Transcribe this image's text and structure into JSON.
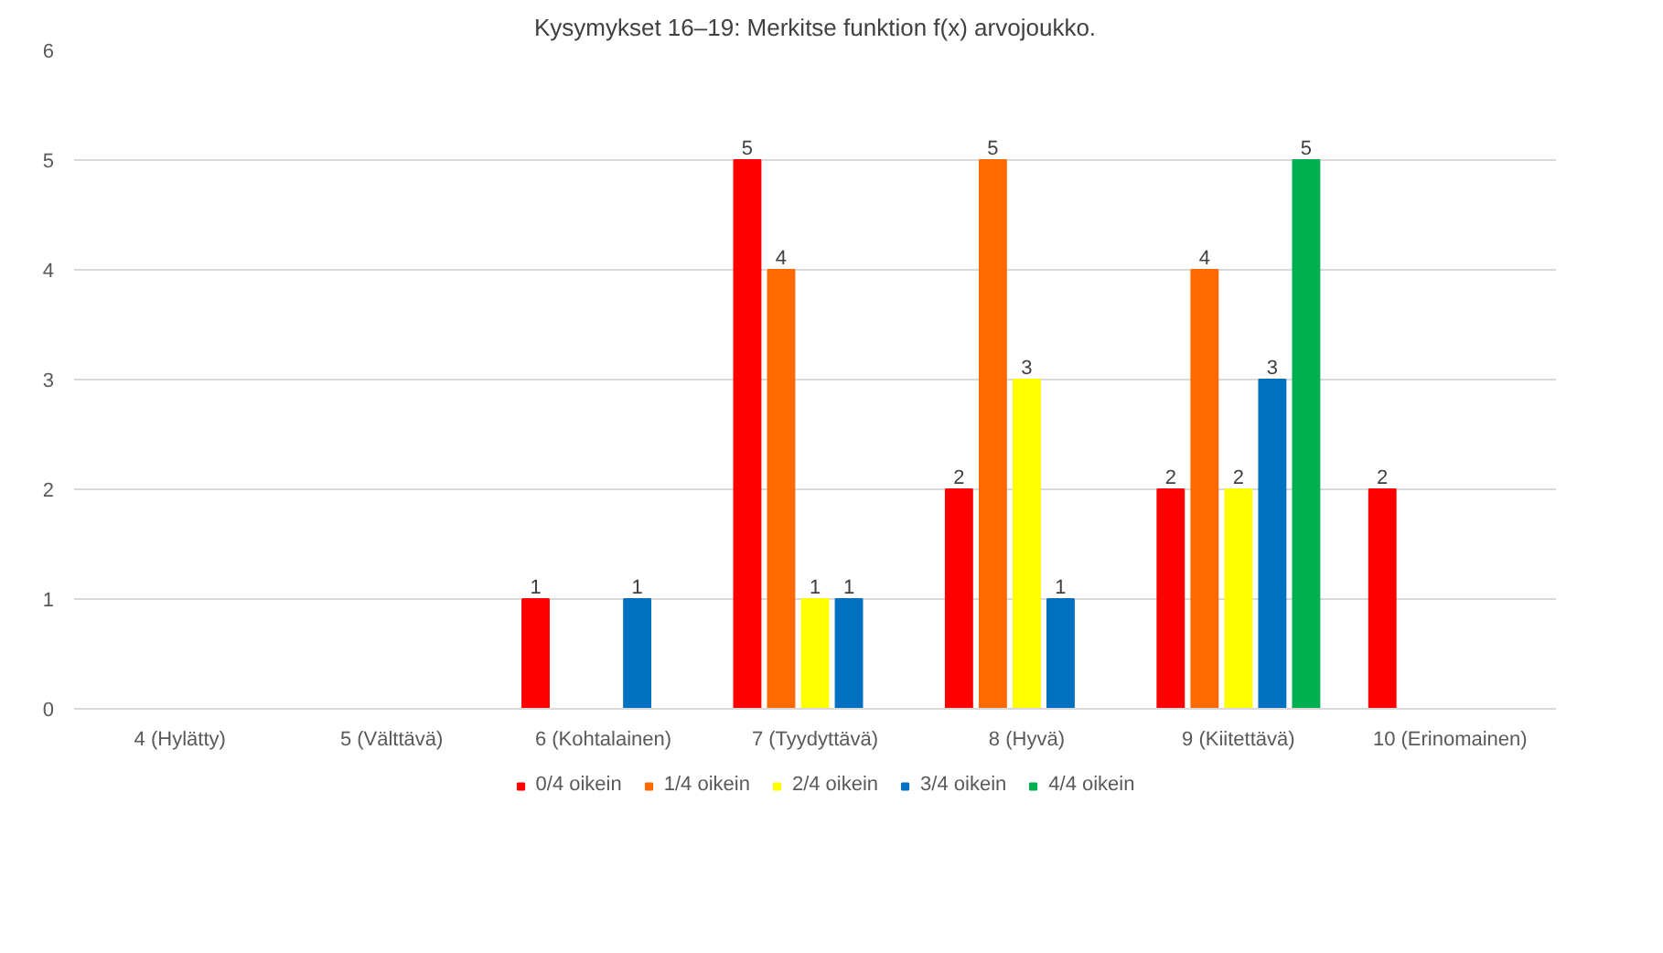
{
  "chart_data": {
    "type": "bar",
    "title": "Kysymykset 16–19: Merkitse funktion f(x) arvojoukko.",
    "categories": [
      "4 (Hylätty)",
      "5 (Välttävä)",
      "6 (Kohtalainen)",
      "7 (Tyydyttävä)",
      "8 (Hyvä)",
      "9 (Kiitettävä)",
      "10 (Erinomainen)"
    ],
    "series": [
      {
        "name": "0/4 oikein",
        "color": "#ff0000",
        "values": [
          null,
          null,
          1,
          5,
          2,
          2,
          2
        ]
      },
      {
        "name": "1/4 oikein",
        "color": "#ff6a00",
        "values": [
          null,
          null,
          null,
          4,
          5,
          4,
          null
        ]
      },
      {
        "name": "2/4 oikein",
        "color": "#ffff00",
        "values": [
          null,
          null,
          null,
          1,
          3,
          2,
          null
        ]
      },
      {
        "name": "3/4 oikein",
        "color": "#0070c0",
        "values": [
          null,
          null,
          1,
          1,
          1,
          3,
          null
        ]
      },
      {
        "name": "4/4 oikein",
        "color": "#00b050",
        "values": [
          null,
          null,
          null,
          null,
          null,
          5,
          null
        ]
      }
    ],
    "ylim": [
      0,
      6
    ],
    "yticks": [
      0,
      1,
      2,
      3,
      4,
      5,
      6
    ],
    "grid": "y",
    "legend": "bottom",
    "data_labels": true
  }
}
